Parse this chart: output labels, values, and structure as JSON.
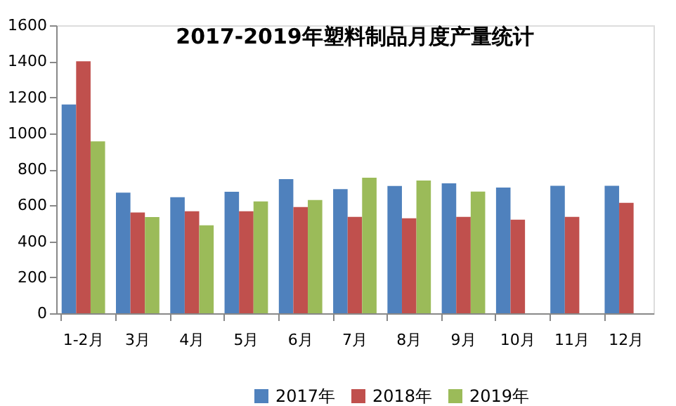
{
  "chart_data": {
    "type": "bar",
    "title": "2017-2019年塑料制品月度产量统计",
    "categories": [
      "1-2月",
      "3月",
      "4月",
      "5月",
      "6月",
      "7月",
      "8月",
      "9月",
      "10月",
      "11月",
      "12月"
    ],
    "series": [
      {
        "name": "2017年",
        "color": "#4f81bd",
        "values": [
          1160,
          670,
          645,
          675,
          745,
          690,
          707,
          722,
          699,
          708,
          708
        ]
      },
      {
        "name": "2018年",
        "color": "#c0504d",
        "values": [
          1400,
          560,
          567,
          567,
          590,
          536,
          528,
          536,
          520,
          536,
          614
        ]
      },
      {
        "name": "2019年",
        "color": "#9bbb59",
        "values": [
          955,
          535,
          489,
          621,
          629,
          753,
          738,
          676,
          null,
          null,
          null
        ]
      }
    ],
    "ylim": [
      0,
      1600
    ],
    "yticks": [
      0,
      200,
      400,
      600,
      800,
      1000,
      1200,
      1400,
      1600
    ],
    "grid": false,
    "legend": "bottom"
  }
}
